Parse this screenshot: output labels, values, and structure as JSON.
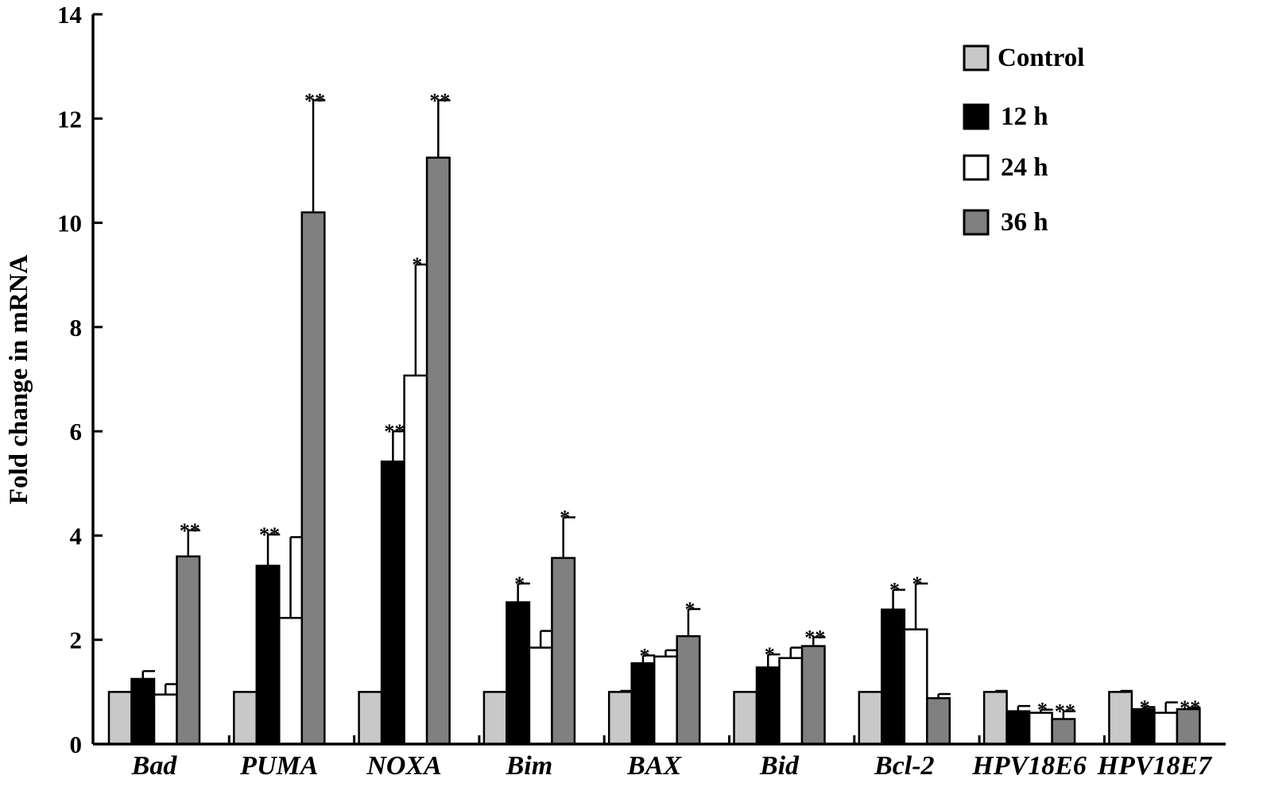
{
  "chart_data": {
    "type": "bar",
    "title": "",
    "xlabel": "",
    "ylabel": "Fold change in mRNA",
    "ylim": [
      0,
      14
    ],
    "yticks": [
      "0",
      "2",
      "4",
      "6",
      "8",
      "10",
      "12",
      "14"
    ],
    "grid": false,
    "legend_position": "top-right",
    "categories": [
      "Bad",
      "PUMA",
      "NOXA",
      "Bim",
      "BAX",
      "Bid",
      "Bcl-2",
      "HPV18E6",
      "HPV18E7"
    ],
    "series": [
      {
        "name": "Control",
        "color": "#c8c8c8",
        "values": [
          1.0,
          1.0,
          1.0,
          1.0,
          1.0,
          1.0,
          1.0,
          1.0,
          1.0
        ],
        "errors": [
          0,
          0,
          0,
          0,
          0.02,
          0,
          0,
          0.02,
          0.02
        ],
        "significance": [
          "",
          "",
          "",
          "",
          "",
          "",
          "",
          "",
          ""
        ]
      },
      {
        "name": "12 h",
        "color": "#000000",
        "values": [
          1.25,
          3.42,
          5.42,
          2.72,
          1.55,
          1.47,
          2.58,
          0.63,
          0.67
        ],
        "errors": [
          0.15,
          0.6,
          0.58,
          0.36,
          0.15,
          0.25,
          0.38,
          0.1,
          0.04
        ],
        "significance": [
          "",
          "**",
          "**",
          "*",
          "*",
          "*",
          "*",
          "",
          "*"
        ]
      },
      {
        "name": "24 h",
        "color": "#ffffff",
        "values": [
          0.95,
          2.42,
          7.07,
          1.85,
          1.68,
          1.65,
          2.2,
          0.6,
          0.6
        ],
        "errors": [
          0.2,
          1.55,
          2.13,
          0.32,
          0.12,
          0.2,
          0.88,
          0.06,
          0.2
        ],
        "significance": [
          "",
          "",
          "*",
          "",
          "",
          "",
          "*",
          "*",
          ""
        ]
      },
      {
        "name": "36 h",
        "color": "#808080",
        "values": [
          3.6,
          10.2,
          11.25,
          3.57,
          2.07,
          1.88,
          0.88,
          0.48,
          0.67
        ],
        "errors": [
          0.5,
          2.15,
          1.1,
          0.78,
          0.52,
          0.17,
          0.08,
          0.15,
          0.03
        ],
        "significance": [
          "**",
          "**",
          "**",
          "*",
          "*",
          "**",
          "",
          "**",
          "**"
        ]
      }
    ]
  }
}
